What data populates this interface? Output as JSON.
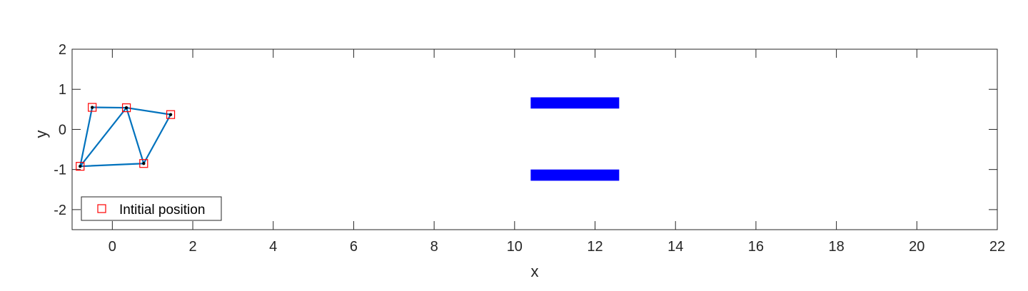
{
  "chart_data": {
    "type": "scatter",
    "xlabel": "x",
    "ylabel": "y",
    "xlim": [
      -1,
      22
    ],
    "ylim": [
      -2.5,
      2
    ],
    "xticks": [
      0,
      2,
      4,
      6,
      8,
      10,
      12,
      14,
      16,
      18,
      20,
      22
    ],
    "yticks": [
      -2,
      -1,
      0,
      1,
      2
    ],
    "grid": false,
    "legend": {
      "placement": "bottom-left",
      "entries": [
        "Intitial position"
      ]
    },
    "colors": {
      "edges": "#0072BD",
      "markers": "#FF0000",
      "obstacles": "#0000FF",
      "nodes": "#000000"
    },
    "nodes": [
      {
        "x": -0.5,
        "y": 0.55
      },
      {
        "x": 0.35,
        "y": 0.54
      },
      {
        "x": 1.45,
        "y": 0.37
      },
      {
        "x": -0.8,
        "y": -0.92
      },
      {
        "x": 0.78,
        "y": -0.85
      }
    ],
    "edges": [
      [
        0,
        1
      ],
      [
        1,
        2
      ],
      [
        0,
        3
      ],
      [
        3,
        1
      ],
      [
        1,
        4
      ],
      [
        4,
        2
      ],
      [
        3,
        4
      ]
    ],
    "series": [
      {
        "name": "Intitial position",
        "marker": "square",
        "x": [
          -0.5,
          0.35,
          1.45,
          -0.8,
          0.78
        ],
        "y": [
          0.55,
          0.54,
          0.37,
          -0.92,
          -0.85
        ]
      }
    ],
    "obstacles": [
      {
        "x": [
          10.4,
          12.6
        ],
        "y": [
          0.52,
          0.8
        ]
      },
      {
        "x": [
          10.4,
          12.6
        ],
        "y": [
          -1.28,
          -1.0
        ]
      }
    ]
  }
}
